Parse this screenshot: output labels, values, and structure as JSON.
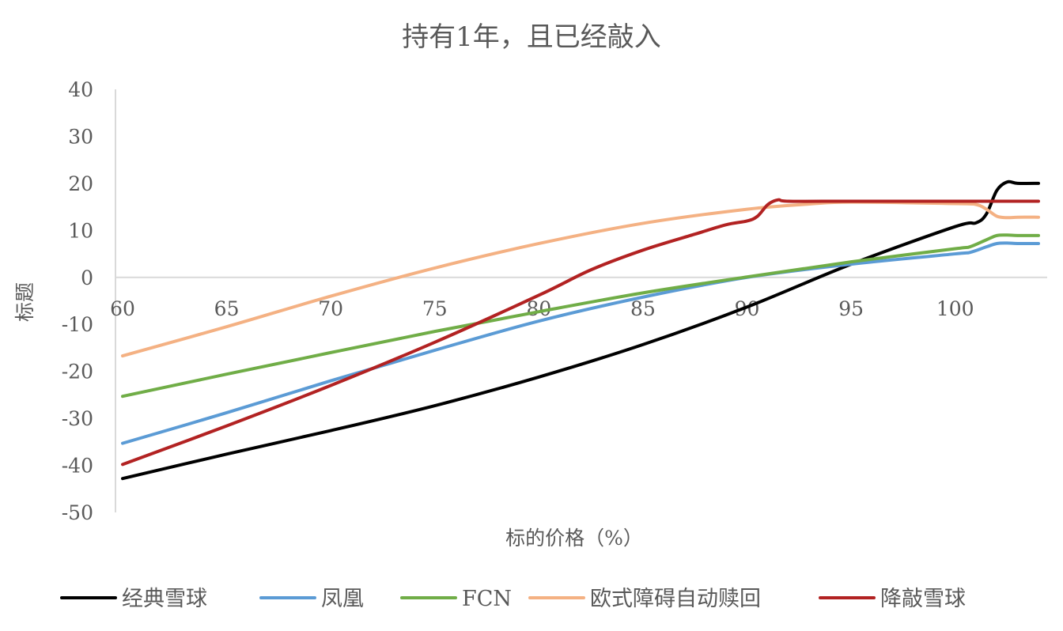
{
  "chart_data": {
    "type": "line",
    "title": "持有1年，且已经敲入",
    "xlabel": "标的价格（%）",
    "ylabel": "标题",
    "xlim": [
      60,
      104
    ],
    "ylim": [
      -50,
      40
    ],
    "x_ticks": [
      "60",
      "65",
      "70",
      "75",
      "80",
      "85",
      "90",
      "95",
      "100"
    ],
    "y_ticks": [
      "40",
      "30",
      "20",
      "10",
      "0",
      "-10",
      "-20",
      "-30",
      "-40",
      "-50"
    ],
    "grid": false,
    "legend_position": "bottom",
    "series": [
      {
        "name": "经典雪球",
        "color": "#000000",
        "points": [
          [
            60,
            -42.8
          ],
          [
            65,
            -37.6
          ],
          [
            70,
            -32.6
          ],
          [
            75,
            -27.3
          ],
          [
            80,
            -21.2
          ],
          [
            85,
            -14.3
          ],
          [
            90,
            -6.3
          ],
          [
            95,
            2.8
          ],
          [
            100,
            10.8
          ],
          [
            101,
            11.6
          ],
          [
            101.5,
            13.5
          ],
          [
            102,
            18.5
          ],
          [
            102.5,
            20.3
          ],
          [
            103,
            20.0
          ],
          [
            104,
            20.0
          ]
        ]
      },
      {
        "name": "凤凰",
        "color": "#5B9BD5",
        "points": [
          [
            60,
            -35.3
          ],
          [
            65,
            -28.8
          ],
          [
            70,
            -22.0
          ],
          [
            75,
            -15.5
          ],
          [
            80,
            -9.3
          ],
          [
            85,
            -4.2
          ],
          [
            90,
            0.0
          ],
          [
            95,
            2.8
          ],
          [
            100,
            5.0
          ],
          [
            100.7,
            5.3
          ],
          [
            101.5,
            6.5
          ],
          [
            102,
            7.2
          ],
          [
            102.5,
            7.3
          ],
          [
            103,
            7.2
          ],
          [
            104,
            7.2
          ]
        ]
      },
      {
        "name": "FCN",
        "color": "#70AD47",
        "points": [
          [
            60,
            -25.3
          ],
          [
            65,
            -20.6
          ],
          [
            70,
            -16.0
          ],
          [
            75,
            -11.5
          ],
          [
            80,
            -7.3
          ],
          [
            85,
            -3.3
          ],
          [
            90,
            0.1
          ],
          [
            95,
            3.3
          ],
          [
            100,
            6.1
          ],
          [
            100.7,
            6.5
          ],
          [
            101.5,
            8.0
          ],
          [
            102,
            8.9
          ],
          [
            102.5,
            9.0
          ],
          [
            103,
            8.9
          ],
          [
            104,
            8.9
          ]
        ]
      },
      {
        "name": "欧式障碍自动赎回",
        "color": "#F4B183",
        "points": [
          [
            60,
            -16.7
          ],
          [
            65,
            -10.5
          ],
          [
            70,
            -4.0
          ],
          [
            75,
            2.0
          ],
          [
            80,
            7.2
          ],
          [
            85,
            11.5
          ],
          [
            90,
            14.5
          ],
          [
            93,
            15.6
          ],
          [
            95,
            16.0
          ],
          [
            100,
            15.7
          ],
          [
            101,
            15.5
          ],
          [
            101.5,
            14.5
          ],
          [
            102,
            13.0
          ],
          [
            102.5,
            12.7
          ],
          [
            103,
            12.8
          ],
          [
            104,
            12.8
          ]
        ]
      },
      {
        "name": "降敲雪球",
        "color": "#B22222",
        "points": [
          [
            60,
            -39.8
          ],
          [
            65,
            -31.6
          ],
          [
            70,
            -23.0
          ],
          [
            75,
            -13.8
          ],
          [
            80,
            -3.8
          ],
          [
            82.5,
            1.6
          ],
          [
            85,
            5.8
          ],
          [
            87.5,
            9.2
          ],
          [
            89,
            11.2
          ],
          [
            90,
            12.0
          ],
          [
            90.5,
            13.0
          ],
          [
            91,
            15.5
          ],
          [
            91.5,
            16.5
          ],
          [
            92,
            16.2
          ],
          [
            95,
            16.2
          ],
          [
            100,
            16.2
          ],
          [
            104,
            16.2
          ]
        ]
      }
    ]
  }
}
